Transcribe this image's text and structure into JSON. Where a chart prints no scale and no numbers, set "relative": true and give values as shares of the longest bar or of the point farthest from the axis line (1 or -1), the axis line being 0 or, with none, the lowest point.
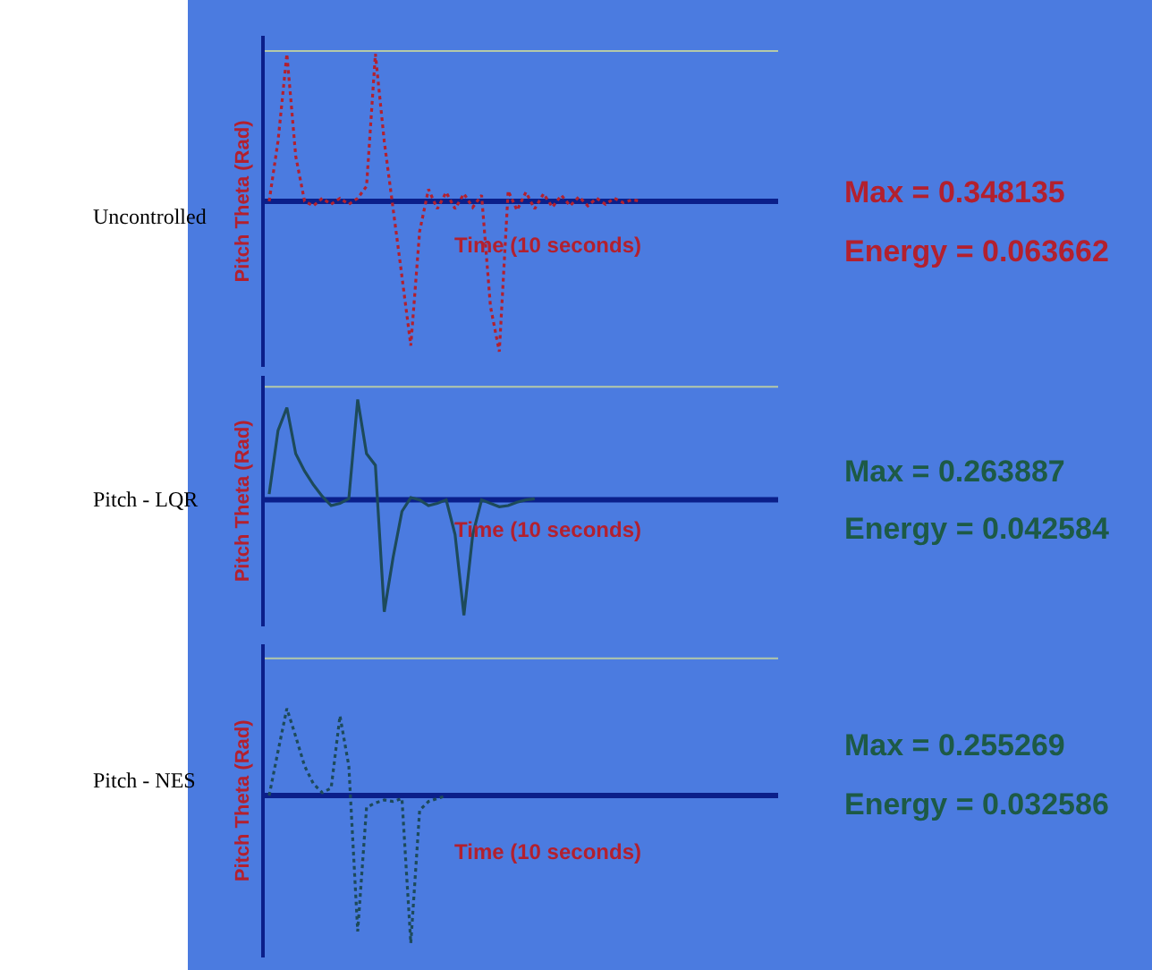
{
  "chart_data": [
    {
      "type": "line",
      "title": "Uncontrolled",
      "ylabel": "Pitch Theta (Rad)",
      "xlabel": "Time (10 seconds)",
      "relative": true,
      "line_style": "dotted",
      "grid": false,
      "categories": [
        null,
        null,
        null,
        null,
        null,
        null,
        null,
        null,
        null,
        null,
        null,
        null,
        null,
        null,
        null,
        null,
        null,
        null,
        null,
        null,
        null,
        null,
        null,
        null,
        null,
        null,
        null,
        null,
        null,
        null,
        null,
        null,
        null,
        null,
        null,
        null,
        null,
        null,
        null,
        null,
        null,
        null,
        null,
        null,
        null,
        null,
        null,
        null,
        null,
        null,
        null,
        null,
        null,
        null,
        null,
        null,
        null,
        null
      ],
      "series": [
        {
          "color": "#b3202e",
          "values": [
            0,
            0.4,
            0.98,
            0.3,
            0,
            -0.03,
            0.02,
            -0.02,
            0.02,
            -0.02,
            0.02,
            0.1,
            0.98,
            0.4,
            -0.05,
            -0.5,
            -0.96,
            -0.2,
            0.08,
            -0.05,
            0.06,
            -0.05,
            0.05,
            -0.04,
            0.04,
            -0.7,
            -1.0,
            0.07,
            -0.06,
            0.06,
            -0.05,
            0.05,
            -0.04,
            0.04,
            -0.03,
            0.03,
            -0.03,
            0.02,
            -0.02,
            0.02,
            -0.01,
            0.01,
            0,
            null,
            null,
            null,
            null,
            null,
            null,
            null,
            null,
            null,
            null,
            null,
            null,
            null,
            null,
            null
          ]
        }
      ],
      "ref_lines": [
        {
          "axis": "y",
          "value": 1.0,
          "color": "#b5c9a8"
        },
        {
          "axis": "y",
          "value": 0,
          "color": "#0b1f8a"
        }
      ],
      "annotations": [
        "Max = 0.348135",
        "Energy = 0.063662"
      ]
    },
    {
      "type": "line",
      "title": "Pitch - LQR",
      "ylabel": "Pitch Theta (Rad)",
      "xlabel": "Time (10 seconds)",
      "relative": true,
      "line_style": "solid",
      "grid": false,
      "categories": [
        null,
        null,
        null,
        null,
        null,
        null,
        null,
        null,
        null,
        null,
        null,
        null,
        null,
        null,
        null,
        null,
        null,
        null,
        null,
        null,
        null,
        null,
        null,
        null,
        null,
        null,
        null,
        null,
        null,
        null,
        null,
        null,
        null,
        null,
        null,
        null,
        null,
        null,
        null,
        null,
        null,
        null,
        null,
        null,
        null,
        null,
        null,
        null,
        null,
        null,
        null,
        null,
        null,
        null,
        null,
        null,
        null,
        null
      ],
      "series": [
        {
          "color": "#1d4a5a",
          "values": [
            0.05,
            0.6,
            0.8,
            0.4,
            0.25,
            0.13,
            0.03,
            -0.05,
            -0.03,
            0.01,
            0.87,
            0.4,
            0.3,
            -0.97,
            -0.5,
            -0.1,
            0.02,
            0,
            -0.05,
            -0.03,
            0,
            -0.3,
            -1.0,
            -0.3,
            0,
            -0.03,
            -0.06,
            -0.05,
            -0.02,
            0,
            0.01,
            null,
            null,
            null,
            null,
            null,
            null,
            null,
            null,
            null,
            null,
            null,
            null,
            null,
            null,
            null,
            null,
            null,
            null,
            null,
            null,
            null,
            null,
            null,
            null,
            null,
            null,
            null
          ]
        }
      ],
      "ref_lines": [
        {
          "axis": "y",
          "value": 0.98,
          "color": "#b5c9a8"
        },
        {
          "axis": "y",
          "value": 0,
          "color": "#0b1f8a"
        }
      ],
      "annotations": [
        "Max = 0.263887",
        "Energy = 0.042584"
      ]
    },
    {
      "type": "line",
      "title": "Pitch - NES",
      "ylabel": "Pitch Theta (Rad)",
      "xlabel": "Time (10 seconds)",
      "relative": true,
      "line_style": "dotted",
      "grid": false,
      "categories": [
        null,
        null,
        null,
        null,
        null,
        null,
        null,
        null,
        null,
        null,
        null,
        null,
        null,
        null,
        null,
        null,
        null,
        null,
        null,
        null,
        null,
        null,
        null,
        null,
        null,
        null,
        null,
        null,
        null,
        null,
        null,
        null,
        null,
        null,
        null,
        null,
        null,
        null,
        null,
        null,
        null,
        null,
        null,
        null,
        null,
        null,
        null,
        null,
        null,
        null,
        null,
        null,
        null,
        null,
        null,
        null,
        null,
        null
      ],
      "series": [
        {
          "color": "#1d4a5a",
          "values": [
            0,
            0.3,
            0.59,
            0.4,
            0.2,
            0.08,
            0.02,
            0.05,
            0.54,
            0.2,
            -0.92,
            -0.08,
            -0.05,
            -0.03,
            -0.04,
            -0.02,
            -1.0,
            -0.1,
            -0.04,
            -0.02,
            0,
            null,
            null,
            null,
            null,
            null,
            null,
            null,
            null,
            null,
            null,
            null,
            null,
            null,
            null,
            null,
            null,
            null,
            null,
            null,
            null,
            null,
            null,
            null,
            null,
            null,
            null,
            null,
            null,
            null,
            null,
            null,
            null,
            null,
            null,
            null,
            null,
            null
          ]
        }
      ],
      "ref_lines": [
        {
          "axis": "y",
          "value": 0.93,
          "color": "#b5c9a8"
        },
        {
          "axis": "y",
          "value": 0,
          "color": "#0b1f8a"
        }
      ],
      "annotations": [
        "Max = 0.255269",
        "Energy = 0.032586"
      ]
    }
  ]
}
